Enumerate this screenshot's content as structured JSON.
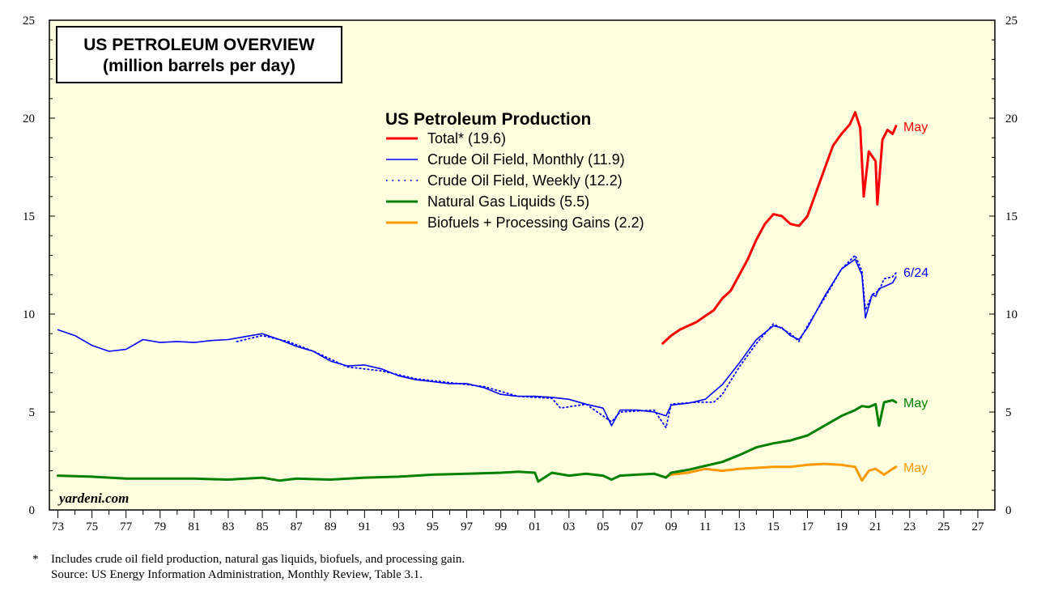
{
  "chart_data": {
    "type": "line",
    "title": "US PETROLEUM OVERVIEW",
    "subtitle": "(million barrels per day)",
    "legend_title": "US Petroleum Production",
    "credit": "yardeni.com",
    "xlim": [
      1972.5,
      2028
    ],
    "ylim": [
      0,
      25
    ],
    "y_ticks": [
      0,
      5,
      10,
      15,
      20,
      25
    ],
    "x_tick_labels": [
      "73",
      "75",
      "77",
      "79",
      "81",
      "83",
      "85",
      "87",
      "89",
      "91",
      "93",
      "95",
      "97",
      "99",
      "01",
      "03",
      "05",
      "07",
      "09",
      "11",
      "13",
      "15",
      "17",
      "19",
      "21",
      "23",
      "25",
      "27"
    ],
    "background": "#ffffe0",
    "series": [
      {
        "name": "Total* (19.6)",
        "color": "#ff0000",
        "style": "solid",
        "weight": 3,
        "end_label": "May",
        "x": [
          2008.5,
          2009,
          2009.5,
          2010,
          2010.5,
          2011,
          2011.5,
          2012,
          2012.5,
          2013,
          2013.5,
          2014,
          2014.5,
          2015,
          2015.5,
          2016,
          2016.5,
          2017,
          2017.5,
          2018,
          2018.5,
          2019,
          2019.5,
          2019.8,
          2020.1,
          2020.3,
          2020.6,
          2021.0,
          2021.1,
          2021.4,
          2021.7,
          2022.0,
          2022.2
        ],
        "y": [
          8.5,
          8.9,
          9.2,
          9.4,
          9.6,
          9.9,
          10.2,
          10.8,
          11.2,
          12.0,
          12.8,
          13.8,
          14.6,
          15.1,
          15.0,
          14.6,
          14.5,
          15.0,
          16.2,
          17.4,
          18.6,
          19.2,
          19.7,
          20.3,
          19.5,
          16.0,
          18.3,
          17.8,
          15.6,
          18.9,
          19.4,
          19.2,
          19.6
        ]
      },
      {
        "name": "Crude Oil Field, Monthly (11.9)",
        "color": "#0000ff",
        "style": "solid",
        "weight": 1.6,
        "end_label": "6/24",
        "x": [
          1973,
          1974,
          1975,
          1976,
          1977,
          1978,
          1979,
          1980,
          1981,
          1982,
          1983,
          1984,
          1985,
          1986,
          1987,
          1988,
          1989,
          1990,
          1991,
          1992,
          1993,
          1994,
          1995,
          1996,
          1997,
          1998,
          1999,
          2000,
          2001,
          2002,
          2003,
          2004,
          2005,
          2005.5,
          2006,
          2007,
          2008,
          2008.7,
          2009,
          2010,
          2011,
          2012,
          2013,
          2014,
          2015,
          2015.5,
          2016,
          2016.5,
          2017,
          2018,
          2019,
          2019.8,
          2020.2,
          2020.4,
          2020.8,
          2021.0,
          2021.2,
          2021.5,
          2022.0,
          2022.2
        ],
        "y": [
          9.2,
          8.9,
          8.4,
          8.1,
          8.2,
          8.7,
          8.55,
          8.6,
          8.55,
          8.65,
          8.7,
          8.85,
          9.0,
          8.7,
          8.35,
          8.1,
          7.6,
          7.35,
          7.4,
          7.2,
          6.85,
          6.65,
          6.55,
          6.45,
          6.45,
          6.25,
          5.9,
          5.8,
          5.8,
          5.75,
          5.65,
          5.4,
          5.2,
          4.3,
          5.1,
          5.1,
          5.0,
          4.8,
          5.35,
          5.45,
          5.65,
          6.4,
          7.5,
          8.7,
          9.4,
          9.3,
          8.9,
          8.7,
          9.3,
          10.9,
          12.3,
          12.8,
          12.0,
          9.8,
          11.0,
          10.9,
          11.3,
          11.4,
          11.6,
          11.9
        ]
      },
      {
        "name": "Crude Oil Field, Weekly (12.2)",
        "color": "#0000ff",
        "style": "dotted",
        "weight": 1.6,
        "x": [
          1983.5,
          1985,
          1986.5,
          1988,
          1990,
          1992,
          1994,
          1996,
          1998,
          2000,
          2002,
          2002.5,
          2004,
          2005.5,
          2006,
          2008,
          2008.7,
          2009,
          2010.5,
          2011.5,
          2012,
          2013,
          2014,
          2015,
          2016,
          2016.5,
          2017,
          2018,
          2019,
          2019.8,
          2020.2,
          2020.4,
          2020.8,
          2021.2,
          2021.5,
          2022.0,
          2022.3
        ],
        "y": [
          8.6,
          8.9,
          8.6,
          8.1,
          7.3,
          7.1,
          6.7,
          6.5,
          6.3,
          5.8,
          5.7,
          5.2,
          5.4,
          4.5,
          5.0,
          5.1,
          4.2,
          5.4,
          5.5,
          5.5,
          5.9,
          7.3,
          8.5,
          9.5,
          9.0,
          8.6,
          9.4,
          10.8,
          12.3,
          13.0,
          12.2,
          10.2,
          11.0,
          11.2,
          11.8,
          11.9,
          12.2
        ]
      },
      {
        "name": "Natural Gas Liquids (5.5)",
        "color": "#008000",
        "style": "solid",
        "weight": 3,
        "end_label": "May",
        "x": [
          1973,
          1975,
          1977,
          1979,
          1981,
          1983,
          1985,
          1986,
          1987,
          1989,
          1991,
          1993,
          1995,
          1997,
          1999,
          2000,
          2001,
          2001.2,
          2002,
          2003,
          2004,
          2005,
          2005.5,
          2006,
          2007,
          2008,
          2008.7,
          2009,
          2010,
          2011,
          2012,
          2013,
          2014,
          2015,
          2016,
          2017,
          2018,
          2019,
          2019.8,
          2020.2,
          2020.6,
          2021.0,
          2021.2,
          2021.5,
          2022.0,
          2022.2
        ],
        "y": [
          1.75,
          1.7,
          1.6,
          1.6,
          1.6,
          1.55,
          1.65,
          1.5,
          1.6,
          1.55,
          1.65,
          1.7,
          1.8,
          1.85,
          1.9,
          1.95,
          1.9,
          1.45,
          1.9,
          1.75,
          1.85,
          1.75,
          1.55,
          1.75,
          1.8,
          1.85,
          1.65,
          1.9,
          2.05,
          2.25,
          2.45,
          2.8,
          3.2,
          3.4,
          3.55,
          3.8,
          4.3,
          4.8,
          5.1,
          5.3,
          5.25,
          5.4,
          4.3,
          5.5,
          5.6,
          5.5
        ]
      },
      {
        "name": "Biofuels + Processing Gains (2.2)",
        "color": "#ff9900",
        "style": "solid",
        "weight": 3,
        "end_label": "May",
        "x": [
          2008.7,
          2009,
          2010,
          2011,
          2012,
          2013,
          2014,
          2015,
          2016,
          2017,
          2018,
          2019,
          2019.8,
          2020.2,
          2020.6,
          2021.0,
          2021.5,
          2022.0,
          2022.2
        ],
        "y": [
          1.7,
          1.8,
          1.9,
          2.1,
          2.0,
          2.1,
          2.15,
          2.2,
          2.2,
          2.3,
          2.35,
          2.3,
          2.2,
          1.5,
          2.0,
          2.1,
          1.8,
          2.1,
          2.2
        ]
      }
    ]
  },
  "footnote": {
    "marker": "*",
    "line1": "Includes crude oil field production, natural gas liquids, biofuels, and processing gain.",
    "line2": "Source: US Energy Information Administration, Monthly Review, Table 3.1."
  }
}
